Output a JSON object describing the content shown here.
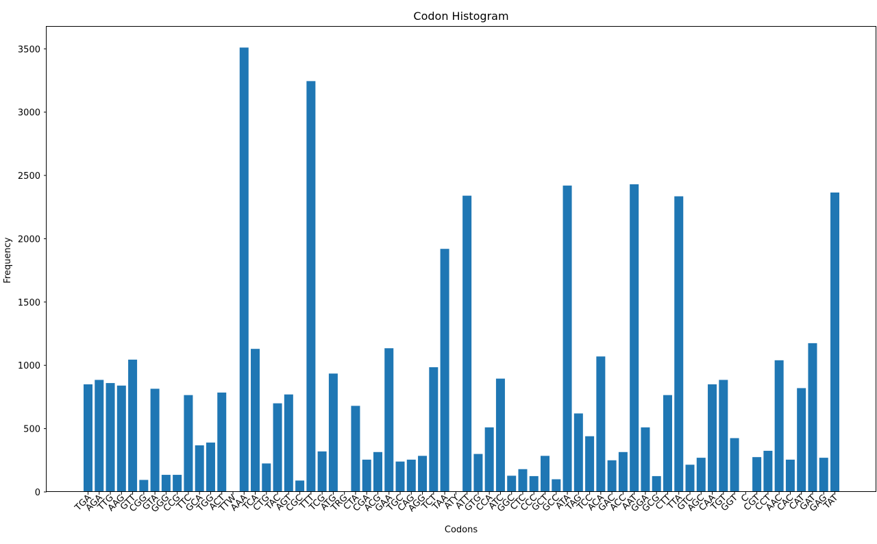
{
  "chart_data": {
    "type": "bar",
    "title": "Codon Histogram",
    "xlabel": "Codons",
    "ylabel": "Frequency",
    "ylim": [
      0,
      3680
    ],
    "yticks": [
      0,
      500,
      1000,
      1500,
      2000,
      2500,
      3000,
      3500
    ],
    "bar_color": "#1f77b4",
    "grid": false,
    "categories": [
      "TGA",
      "AGA",
      "TTG",
      "AAG",
      "GTT",
      "CGG",
      "GTA",
      "GGG",
      "CCG",
      "TTC",
      "GCA",
      "TGG",
      "ACT",
      "TTW",
      "AAA",
      "TCA",
      "CTG",
      "TAC",
      "AGT",
      "CGC",
      "TTT",
      "TCG",
      "ATG",
      "TRG",
      "CTA",
      "CGA",
      "ACG",
      "GAA",
      "TGC",
      "CAG",
      "AGG",
      "TCT",
      "TAA",
      "ATY",
      "ATT",
      "GTG",
      "CCA",
      "ATC",
      "GGC",
      "CTC",
      "CCC",
      "GCT",
      "GCC",
      "ATA",
      "TAG",
      "TCC",
      "ACA",
      "GAC",
      "ACC",
      "AAT",
      "GGA",
      "GCG",
      "CTT",
      "TTA",
      "GTC",
      "AGC",
      "CAA",
      "TGT",
      "GGT",
      "C",
      "CGT",
      "CCT",
      "AAC",
      "CAC",
      "CAT",
      "GAT",
      "GAG",
      "TAT"
    ],
    "values": [
      850,
      885,
      860,
      840,
      1045,
      95,
      815,
      135,
      135,
      765,
      368,
      390,
      785,
      0,
      3510,
      1130,
      225,
      700,
      770,
      90,
      3245,
      320,
      935,
      0,
      680,
      255,
      315,
      1135,
      240,
      255,
      285,
      985,
      1920,
      0,
      2340,
      300,
      510,
      895,
      128,
      180,
      125,
      285,
      100,
      2420,
      620,
      440,
      1070,
      250,
      315,
      2430,
      510,
      125,
      765,
      2335,
      215,
      270,
      850,
      885,
      425,
      0,
      275,
      325,
      1040,
      255,
      820,
      1175,
      270,
      2365
    ]
  }
}
